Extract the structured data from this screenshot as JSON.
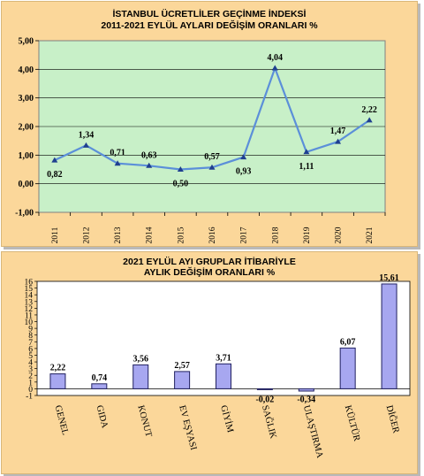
{
  "chart_data": [
    {
      "type": "line",
      "title": "İSTANBUL ÜCRETLİLER GEÇİNME İNDEKSİ",
      "subtitle": "2011-2021 EYLÜL AYLARI DEĞİŞİM ORANLARI %",
      "x": [
        "2011",
        "2012",
        "2013",
        "2014",
        "2015",
        "2016",
        "2017",
        "2018",
        "2019",
        "2020",
        "2021"
      ],
      "values": [
        0.82,
        1.34,
        0.71,
        0.63,
        0.5,
        0.57,
        0.93,
        4.04,
        1.11,
        1.47,
        2.22
      ],
      "value_labels": [
        "0,82",
        "1,34",
        "0,71",
        "0,63",
        "0,50",
        "0,57",
        "0,93",
        "4,04",
        "1,11",
        "1,47",
        "2,22"
      ],
      "yticks": [
        "-1,00",
        "0,00",
        "1,00",
        "2,00",
        "3,00",
        "4,00",
        "5,00"
      ],
      "ylim": [
        -1,
        5
      ],
      "grid": true,
      "colors": {
        "line": "#5b8fd9",
        "marker": "#1f3f8f",
        "plot_bg": "#c8f0c8"
      }
    },
    {
      "type": "bar",
      "title": "2021 EYLÜL AYI GRUPLAR İTİBARİYLE",
      "subtitle": "AYLIK DEĞİŞİM ORANLARI %",
      "categories": [
        "GENEL",
        "GIDA",
        "KONUT",
        "EV EŞYASI",
        "GİYİM",
        "SAĞLIK",
        "ULAŞTIRMA",
        "KÜLTÜR",
        "DİĞER"
      ],
      "values": [
        2.22,
        0.74,
        3.56,
        2.57,
        3.71,
        -0.02,
        -0.34,
        6.07,
        15.61
      ],
      "value_labels": [
        "2,22",
        "0,74",
        "3,56",
        "2,57",
        "3,71",
        "-0,02",
        "-0,34",
        "6,07",
        "15,61"
      ],
      "yticks": [
        "-1",
        "0",
        "1",
        "2",
        "3",
        "4",
        "5",
        "6",
        "7",
        "8",
        "9",
        "10",
        "11",
        "12",
        "13",
        "14",
        "15",
        "16"
      ],
      "ylim": [
        -1,
        16
      ],
      "grid": false,
      "colors": {
        "bar": "#a7a7f0",
        "bar_stroke": "#202060",
        "plot_bg": "#ffffff"
      }
    }
  ]
}
